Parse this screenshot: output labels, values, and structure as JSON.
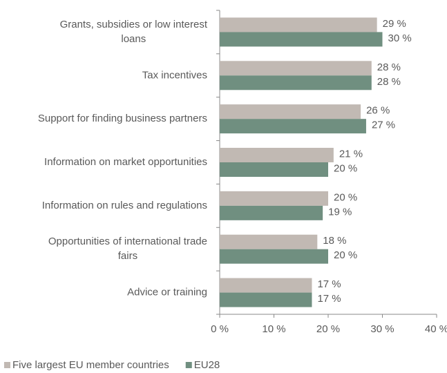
{
  "chart_data": {
    "type": "barh",
    "categories": [
      "Grants, subsidies or low interest\nloans",
      "Tax incentives",
      "Support for finding business partners",
      "Information on market opportunities",
      "Information on rules and regulations",
      "Opportunities of international trade\nfairs",
      "Advice or training"
    ],
    "series": [
      {
        "name": "Five largest EU member countries",
        "color": "#c1b9b3",
        "values": [
          29,
          28,
          26,
          21,
          20,
          18,
          17
        ],
        "value_labels": [
          "29 %",
          "28 %",
          "26 %",
          "21 %",
          "20 %",
          "18 %",
          "17 %"
        ]
      },
      {
        "name": "EU28",
        "color": "#708f80",
        "values": [
          30,
          28,
          27,
          20,
          19,
          20,
          17
        ],
        "value_labels": [
          "30 %",
          "28 %",
          "27 %",
          "20 %",
          "19 %",
          "20 %",
          "17 %"
        ]
      }
    ],
    "xlim": [
      0,
      40
    ],
    "xticks": [
      {
        "value": 0,
        "label": "0 %"
      },
      {
        "value": 10,
        "label": "10 %"
      },
      {
        "value": 20,
        "label": "20 %"
      },
      {
        "value": 30,
        "label": "30 %"
      },
      {
        "value": 40,
        "label": "40 %"
      }
    ],
    "legend": "bottom-left"
  }
}
